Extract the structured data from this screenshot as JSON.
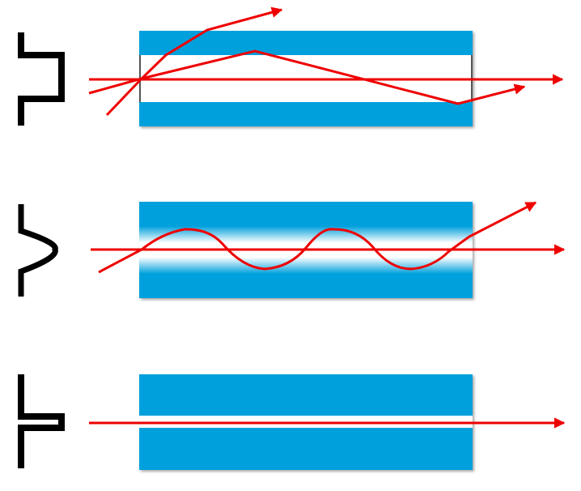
{
  "colors": {
    "cladding": "#00a0dc",
    "core": "#ffffff",
    "ray": "#ee0000",
    "profile": "#000000",
    "fiber_end": "#555555"
  },
  "fibers": [
    {
      "name": "step-index-multimode",
      "profile": "step-index",
      "icon": "step-index-profile-icon"
    },
    {
      "name": "graded-index-multimode",
      "profile": "graded-index",
      "icon": "graded-index-profile-icon"
    },
    {
      "name": "step-index-single-mode",
      "profile": "single-mode",
      "icon": "single-mode-profile-icon"
    }
  ]
}
